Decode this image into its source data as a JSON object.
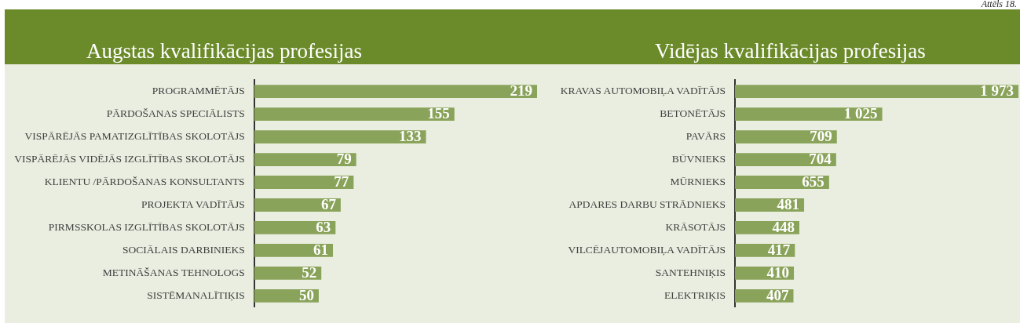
{
  "chart_data": [
    {
      "type": "bar",
      "orientation": "horizontal",
      "title": "Augstas kvalifikācijas profesijas",
      "annotations": [
        "Attēls 18."
      ],
      "categories": [
        "PROGRAMMĒTĀJS",
        "PĀRDOŠANAS SPECIĀLISTS",
        "VISPĀRĒJĀS PAMATIZGLĪTĪBAS SKOLOTĀJS",
        "VISPĀRĒJĀS VIDĒJĀS IZGLĪTĪBAS SKOLOTĀJS",
        "KLIENTU /PĀRDOŠANAS KONSULTANTS",
        "PROJEKTA VADĪTĀJS",
        "PIRMSSKOLAS IZGLĪTĪBAS SKOLOTĀJS",
        "SOCIĀLAIS DARBINIEKS",
        "METINĀŠANAS TEHNOLOGS",
        "SISTĒMANALĪTIĶIS"
      ],
      "values": [
        219,
        155,
        133,
        79,
        77,
        67,
        63,
        61,
        52,
        50
      ],
      "color": "#8aa35a",
      "data_labels": true
    },
    {
      "type": "bar",
      "orientation": "horizontal",
      "title": "Vidējas kvalifikācijas profesijas",
      "categories": [
        "KRAVAS AUTOMOBIĻA VADĪTĀJS",
        "BETONĒTĀJS",
        "PAVĀRS",
        "BŪVNIEKS",
        "MŪRNIEKS",
        "APDARES DARBU STRĀDNIEKS",
        "KRĀSOTĀJS",
        "VILCĒJAUTOMOBIĻA VADĪTĀJS",
        "SANTEHNIĶIS",
        "ELEKTRIĶIS"
      ],
      "values": [
        1973,
        1025,
        709,
        704,
        655,
        481,
        448,
        417,
        410,
        407
      ],
      "color": "#8aa35a",
      "value_labels": [
        "1 973",
        "1 025",
        "709",
        "704",
        "655",
        "481",
        "448",
        "417",
        "410",
        "407"
      ]
    }
  ]
}
